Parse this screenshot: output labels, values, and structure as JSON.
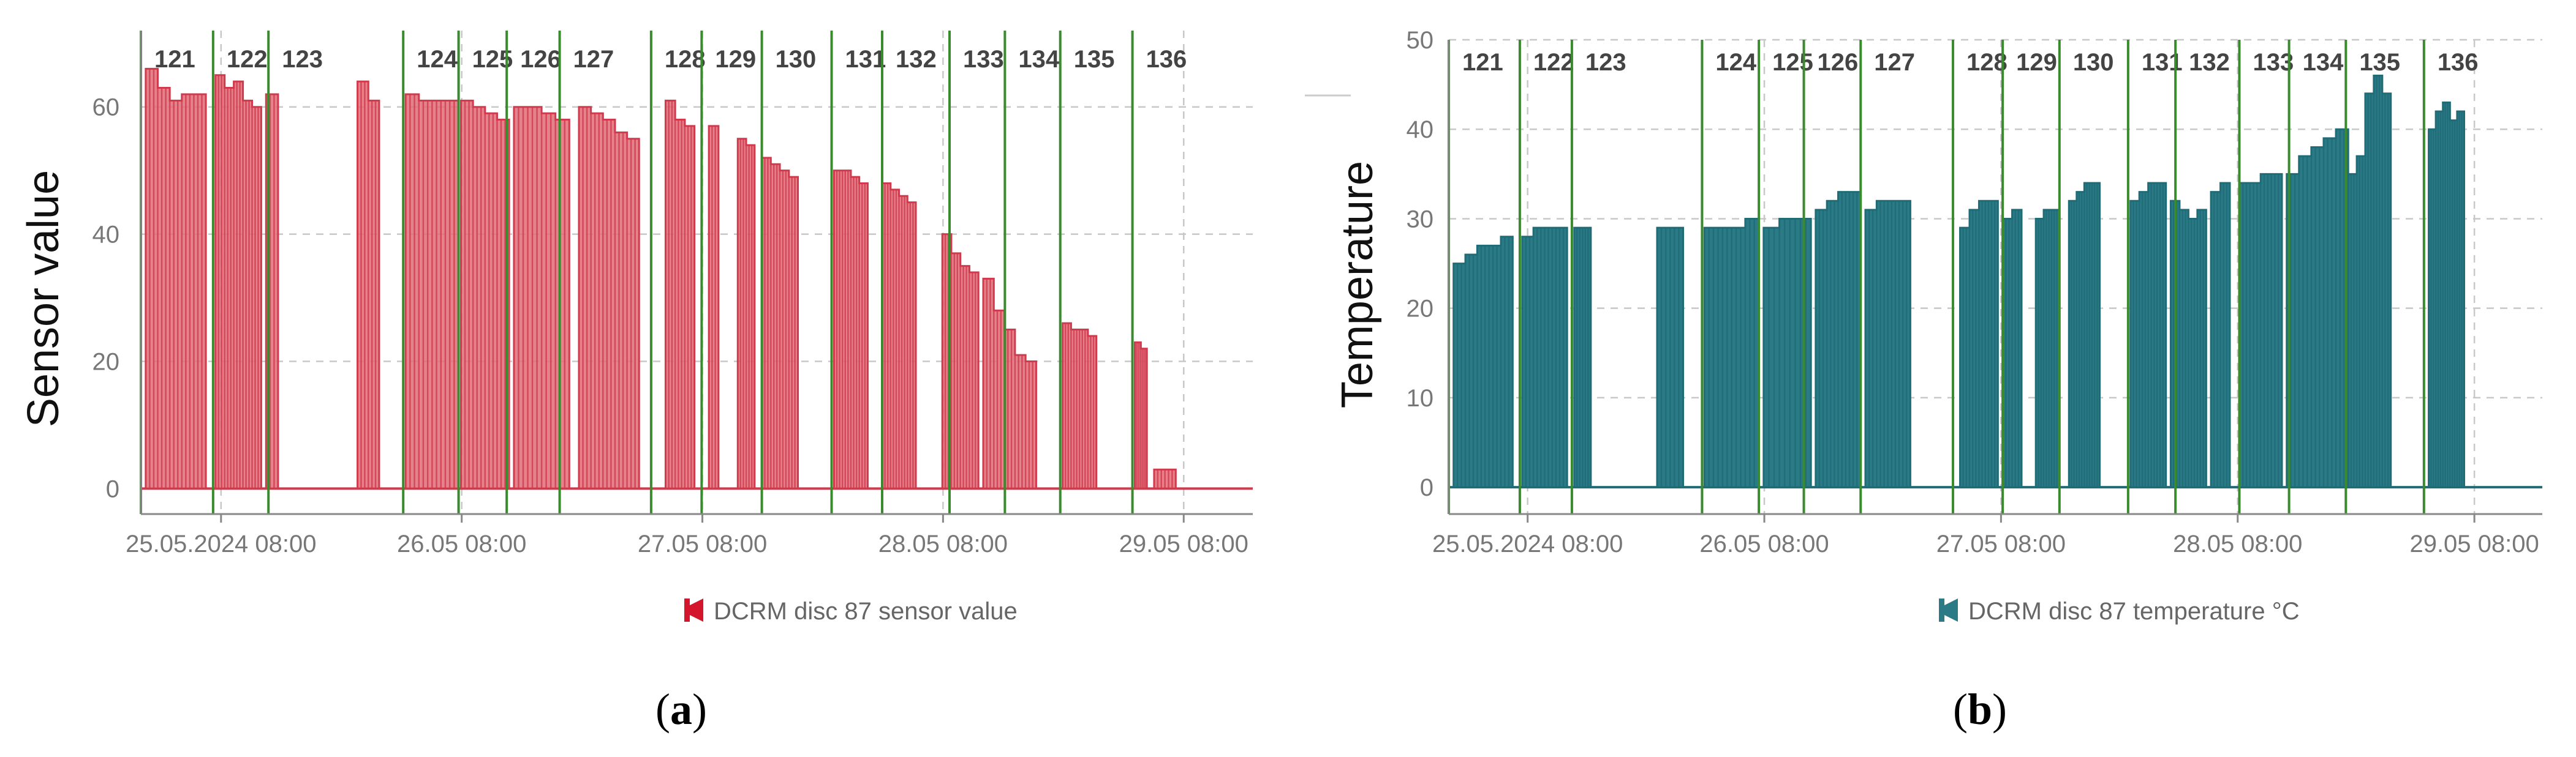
{
  "chart_data": [
    {
      "type": "area",
      "panel_label": {
        "open": "(",
        "letter": "a",
        "close": ")"
      },
      "ylabel": "Sensor value",
      "xlabel": "",
      "ylim": [
        -4,
        72
      ],
      "yticks": [
        0,
        20,
        40,
        60
      ],
      "xlim": [
        0,
        4.62
      ],
      "x_unit": "days since 25.05.2024 00:00",
      "xticks": [
        {
          "x": 0.333,
          "label": "25.05.2024 08:00"
        },
        {
          "x": 1.333,
          "label": "26.05 08:00"
        },
        {
          "x": 2.333,
          "label": "27.05 08:00"
        },
        {
          "x": 3.333,
          "label": "28.05 08:00"
        },
        {
          "x": 4.333,
          "label": "29.05 08:00"
        }
      ],
      "grid": true,
      "legend": {
        "position": "bottom-center",
        "label": "DCRM disc 87 sensor value",
        "color": "#d4162d"
      },
      "series": [
        {
          "name": "DCRM disc 87 sensor value",
          "color": "#e06d79",
          "pulses": [
            {
              "start": 0.02,
              "end": 0.27,
              "values": [
                66,
                63,
                61,
                62,
                62
              ]
            },
            {
              "start": 0.31,
              "end": 0.5,
              "values": [
                65,
                63,
                64,
                61,
                60
              ]
            },
            {
              "start": 0.52,
              "end": 0.57,
              "values": [
                62
              ]
            },
            {
              "start": 0.9,
              "end": 0.99,
              "values": [
                64,
                61
              ]
            },
            {
              "start": 1.1,
              "end": 1.32,
              "values": [
                62,
                61,
                61,
                61
              ]
            },
            {
              "start": 1.33,
              "end": 1.53,
              "values": [
                61,
                60,
                59,
                58
              ]
            },
            {
              "start": 1.55,
              "end": 1.78,
              "values": [
                60,
                60,
                59,
                58
              ]
            },
            {
              "start": 1.82,
              "end": 2.07,
              "values": [
                60,
                59,
                58,
                56,
                55
              ]
            },
            {
              "start": 2.18,
              "end": 2.3,
              "values": [
                61,
                58,
                57
              ]
            },
            {
              "start": 2.36,
              "end": 2.4,
              "values": [
                57
              ]
            },
            {
              "start": 2.48,
              "end": 2.55,
              "values": [
                55,
                54
              ]
            },
            {
              "start": 2.58,
              "end": 2.73,
              "values": [
                52,
                51,
                50,
                49
              ]
            },
            {
              "start": 2.88,
              "end": 3.02,
              "values": [
                50,
                50,
                49,
                48
              ]
            },
            {
              "start": 3.08,
              "end": 3.22,
              "values": [
                48,
                47,
                46,
                45
              ]
            },
            {
              "start": 3.33,
              "end": 3.48,
              "values": [
                40,
                37,
                35,
                34
              ]
            },
            {
              "start": 3.5,
              "end": 3.72,
              "values": [
                33,
                28,
                25,
                21,
                20
              ]
            },
            {
              "start": 3.83,
              "end": 3.97,
              "values": [
                26,
                25,
                25,
                24
              ]
            },
            {
              "start": 4.13,
              "end": 4.18,
              "values": [
                23,
                22
              ]
            },
            {
              "start": 4.21,
              "end": 4.3,
              "values": [
                3,
                3
              ]
            }
          ]
        }
      ],
      "vlines": [
        {
          "x": 0.0,
          "label": "121"
        },
        {
          "x": 0.3,
          "label": "122"
        },
        {
          "x": 0.53,
          "label": "123"
        },
        {
          "x": 1.09,
          "label": "124"
        },
        {
          "x": 1.32,
          "label": "125"
        },
        {
          "x": 1.52,
          "label": "126"
        },
        {
          "x": 1.74,
          "label": "127"
        },
        {
          "x": 2.12,
          "label": "128"
        },
        {
          "x": 2.33,
          "label": "129"
        },
        {
          "x": 2.58,
          "label": "130"
        },
        {
          "x": 2.87,
          "label": "131"
        },
        {
          "x": 3.08,
          "label": "132"
        },
        {
          "x": 3.36,
          "label": "133"
        },
        {
          "x": 3.59,
          "label": "134"
        },
        {
          "x": 3.82,
          "label": "135"
        },
        {
          "x": 4.12,
          "label": "136"
        }
      ],
      "vline_color": "#3a8a2e"
    },
    {
      "type": "area",
      "panel_label": {
        "open": "(",
        "letter": "b",
        "close": ")"
      },
      "ylabel": "Temperature",
      "xlabel": "",
      "ylim": [
        -3,
        50
      ],
      "yticks": [
        0,
        10,
        20,
        30,
        40,
        50
      ],
      "xlim": [
        0,
        4.62
      ],
      "x_unit": "days since 25.05.2024 00:00",
      "xticks": [
        {
          "x": 0.333,
          "label": "25.05.2024 08:00"
        },
        {
          "x": 1.333,
          "label": "26.05 08:00"
        },
        {
          "x": 2.333,
          "label": "27.05 08:00"
        },
        {
          "x": 3.333,
          "label": "28.05 08:00"
        },
        {
          "x": 4.333,
          "label": "29.05 08:00"
        }
      ],
      "grid": true,
      "legend": {
        "position": "bottom-center",
        "label": "DCRM disc 87 temperature  °C",
        "color": "#2a7b86"
      },
      "series": [
        {
          "name": "DCRM disc 87 temperature  °C",
          "color": "#2a7b86",
          "pulses": [
            {
              "start": 0.02,
              "end": 0.27,
              "values": [
                25,
                26,
                27,
                27,
                28
              ]
            },
            {
              "start": 0.31,
              "end": 0.5,
              "values": [
                28,
                29,
                29,
                29
              ]
            },
            {
              "start": 0.53,
              "end": 0.6,
              "values": [
                29,
                29
              ]
            },
            {
              "start": 0.88,
              "end": 0.99,
              "values": [
                29,
                29
              ]
            },
            {
              "start": 1.08,
              "end": 1.31,
              "values": [
                29,
                29,
                29,
                30
              ]
            },
            {
              "start": 1.33,
              "end": 1.53,
              "values": [
                29,
                30,
                30
              ]
            },
            {
              "start": 1.55,
              "end": 1.74,
              "values": [
                31,
                32,
                33,
                33
              ]
            },
            {
              "start": 1.76,
              "end": 1.95,
              "values": [
                31,
                32,
                32,
                32
              ]
            },
            {
              "start": 2.16,
              "end": 2.32,
              "values": [
                29,
                31,
                32,
                32
              ]
            },
            {
              "start": 2.34,
              "end": 2.42,
              "values": [
                30,
                31
              ]
            },
            {
              "start": 2.48,
              "end": 2.58,
              "values": [
                30,
                31,
                31
              ]
            },
            {
              "start": 2.62,
              "end": 2.75,
              "values": [
                32,
                33,
                34,
                34
              ]
            },
            {
              "start": 2.88,
              "end": 3.03,
              "values": [
                32,
                33,
                34,
                34
              ]
            },
            {
              "start": 3.05,
              "end": 3.2,
              "values": [
                32,
                31,
                30,
                31
              ]
            },
            {
              "start": 3.22,
              "end": 3.3,
              "values": [
                33,
                34
              ]
            },
            {
              "start": 3.34,
              "end": 3.52,
              "values": [
                34,
                34,
                35,
                35
              ]
            },
            {
              "start": 3.54,
              "end": 3.8,
              "values": [
                35,
                37,
                38,
                39,
                40
              ]
            },
            {
              "start": 3.8,
              "end": 3.98,
              "values": [
                35,
                37,
                44,
                46,
                44
              ]
            },
            {
              "start": 4.14,
              "end": 4.29,
              "values": [
                40,
                42,
                43,
                41,
                42
              ]
            }
          ]
        }
      ],
      "vlines": [
        {
          "x": 0.0,
          "label": "121"
        },
        {
          "x": 0.3,
          "label": "122"
        },
        {
          "x": 0.52,
          "label": "123"
        },
        {
          "x": 1.07,
          "label": "124"
        },
        {
          "x": 1.31,
          "label": "125"
        },
        {
          "x": 1.5,
          "label": "126"
        },
        {
          "x": 1.74,
          "label": "127"
        },
        {
          "x": 2.13,
          "label": "128"
        },
        {
          "x": 2.34,
          "label": "129"
        },
        {
          "x": 2.58,
          "label": "130"
        },
        {
          "x": 2.87,
          "label": "131"
        },
        {
          "x": 3.07,
          "label": "132"
        },
        {
          "x": 3.34,
          "label": "133"
        },
        {
          "x": 3.55,
          "label": "134"
        },
        {
          "x": 3.79,
          "label": "135"
        },
        {
          "x": 4.12,
          "label": "136"
        }
      ],
      "vline_color": "#3a8a2e"
    }
  ]
}
